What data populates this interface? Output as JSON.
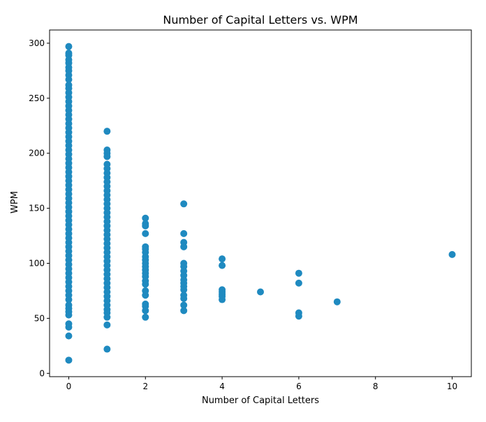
{
  "chart_data": {
    "type": "scatter",
    "title": "Number of Capital Letters vs. WPM",
    "xlabel": "Number of Capital Letters",
    "ylabel": "WPM",
    "xlim": [
      -0.5,
      10.5
    ],
    "ylim": [
      -3,
      312
    ],
    "xticks": [
      0,
      2,
      4,
      6,
      8,
      10
    ],
    "yticks": [
      0,
      50,
      100,
      150,
      200,
      250,
      300
    ],
    "grid": false,
    "marker_color": "#1f8ac0",
    "points": [
      {
        "x": 0,
        "y": 297
      },
      {
        "x": 0,
        "y": 291
      },
      {
        "x": 0,
        "y": 289
      },
      {
        "x": 0,
        "y": 285
      },
      {
        "x": 0,
        "y": 282
      },
      {
        "x": 0,
        "y": 278
      },
      {
        "x": 0,
        "y": 275
      },
      {
        "x": 0,
        "y": 271
      },
      {
        "x": 0,
        "y": 267
      },
      {
        "x": 0,
        "y": 262
      },
      {
        "x": 0,
        "y": 259
      },
      {
        "x": 0,
        "y": 255
      },
      {
        "x": 0,
        "y": 251
      },
      {
        "x": 0,
        "y": 247
      },
      {
        "x": 0,
        "y": 243
      },
      {
        "x": 0,
        "y": 239
      },
      {
        "x": 0,
        "y": 235
      },
      {
        "x": 0,
        "y": 231
      },
      {
        "x": 0,
        "y": 227
      },
      {
        "x": 0,
        "y": 223
      },
      {
        "x": 0,
        "y": 219
      },
      {
        "x": 0,
        "y": 215
      },
      {
        "x": 0,
        "y": 211
      },
      {
        "x": 0,
        "y": 207
      },
      {
        "x": 0,
        "y": 203
      },
      {
        "x": 0,
        "y": 199
      },
      {
        "x": 0,
        "y": 195
      },
      {
        "x": 0,
        "y": 191
      },
      {
        "x": 0,
        "y": 187
      },
      {
        "x": 0,
        "y": 183
      },
      {
        "x": 0,
        "y": 179
      },
      {
        "x": 0,
        "y": 175
      },
      {
        "x": 0,
        "y": 171
      },
      {
        "x": 0,
        "y": 167
      },
      {
        "x": 0,
        "y": 163
      },
      {
        "x": 0,
        "y": 159
      },
      {
        "x": 0,
        "y": 155
      },
      {
        "x": 0,
        "y": 151
      },
      {
        "x": 0,
        "y": 147
      },
      {
        "x": 0,
        "y": 143
      },
      {
        "x": 0,
        "y": 139
      },
      {
        "x": 0,
        "y": 135
      },
      {
        "x": 0,
        "y": 131
      },
      {
        "x": 0,
        "y": 127
      },
      {
        "x": 0,
        "y": 123
      },
      {
        "x": 0,
        "y": 119
      },
      {
        "x": 0,
        "y": 115
      },
      {
        "x": 0,
        "y": 111
      },
      {
        "x": 0,
        "y": 107
      },
      {
        "x": 0,
        "y": 103
      },
      {
        "x": 0,
        "y": 99
      },
      {
        "x": 0,
        "y": 95
      },
      {
        "x": 0,
        "y": 91
      },
      {
        "x": 0,
        "y": 87
      },
      {
        "x": 0,
        "y": 83
      },
      {
        "x": 0,
        "y": 79
      },
      {
        "x": 0,
        "y": 75
      },
      {
        "x": 0,
        "y": 71
      },
      {
        "x": 0,
        "y": 67
      },
      {
        "x": 0,
        "y": 62
      },
      {
        "x": 0,
        "y": 59
      },
      {
        "x": 0,
        "y": 56
      },
      {
        "x": 0,
        "y": 53
      },
      {
        "x": 0,
        "y": 45
      },
      {
        "x": 0,
        "y": 42
      },
      {
        "x": 0,
        "y": 34
      },
      {
        "x": 0,
        "y": 12
      },
      {
        "x": 1,
        "y": 220
      },
      {
        "x": 1,
        "y": 203
      },
      {
        "x": 1,
        "y": 200
      },
      {
        "x": 1,
        "y": 197
      },
      {
        "x": 1,
        "y": 190
      },
      {
        "x": 1,
        "y": 186
      },
      {
        "x": 1,
        "y": 182
      },
      {
        "x": 1,
        "y": 178
      },
      {
        "x": 1,
        "y": 174
      },
      {
        "x": 1,
        "y": 170
      },
      {
        "x": 1,
        "y": 166
      },
      {
        "x": 1,
        "y": 162
      },
      {
        "x": 1,
        "y": 158
      },
      {
        "x": 1,
        "y": 154
      },
      {
        "x": 1,
        "y": 150
      },
      {
        "x": 1,
        "y": 146
      },
      {
        "x": 1,
        "y": 142
      },
      {
        "x": 1,
        "y": 138
      },
      {
        "x": 1,
        "y": 134
      },
      {
        "x": 1,
        "y": 130
      },
      {
        "x": 1,
        "y": 126
      },
      {
        "x": 1,
        "y": 122
      },
      {
        "x": 1,
        "y": 118
      },
      {
        "x": 1,
        "y": 114
      },
      {
        "x": 1,
        "y": 110
      },
      {
        "x": 1,
        "y": 106
      },
      {
        "x": 1,
        "y": 102
      },
      {
        "x": 1,
        "y": 98
      },
      {
        "x": 1,
        "y": 94
      },
      {
        "x": 1,
        "y": 90
      },
      {
        "x": 1,
        "y": 86
      },
      {
        "x": 1,
        "y": 82
      },
      {
        "x": 1,
        "y": 78
      },
      {
        "x": 1,
        "y": 74
      },
      {
        "x": 1,
        "y": 70
      },
      {
        "x": 1,
        "y": 66
      },
      {
        "x": 1,
        "y": 62
      },
      {
        "x": 1,
        "y": 58
      },
      {
        "x": 1,
        "y": 55
      },
      {
        "x": 1,
        "y": 51
      },
      {
        "x": 1,
        "y": 44
      },
      {
        "x": 1,
        "y": 22
      },
      {
        "x": 2,
        "y": 141
      },
      {
        "x": 2,
        "y": 136
      },
      {
        "x": 2,
        "y": 134
      },
      {
        "x": 2,
        "y": 127
      },
      {
        "x": 2,
        "y": 115
      },
      {
        "x": 2,
        "y": 113
      },
      {
        "x": 2,
        "y": 110
      },
      {
        "x": 2,
        "y": 106
      },
      {
        "x": 2,
        "y": 103
      },
      {
        "x": 2,
        "y": 100
      },
      {
        "x": 2,
        "y": 97
      },
      {
        "x": 2,
        "y": 94
      },
      {
        "x": 2,
        "y": 91
      },
      {
        "x": 2,
        "y": 88
      },
      {
        "x": 2,
        "y": 84
      },
      {
        "x": 2,
        "y": 81
      },
      {
        "x": 2,
        "y": 75
      },
      {
        "x": 2,
        "y": 71
      },
      {
        "x": 2,
        "y": 63
      },
      {
        "x": 2,
        "y": 61
      },
      {
        "x": 2,
        "y": 57
      },
      {
        "x": 2,
        "y": 51
      },
      {
        "x": 3,
        "y": 154
      },
      {
        "x": 3,
        "y": 127
      },
      {
        "x": 3,
        "y": 119
      },
      {
        "x": 3,
        "y": 115
      },
      {
        "x": 3,
        "y": 100
      },
      {
        "x": 3,
        "y": 97
      },
      {
        "x": 3,
        "y": 93
      },
      {
        "x": 3,
        "y": 89
      },
      {
        "x": 3,
        "y": 85
      },
      {
        "x": 3,
        "y": 82
      },
      {
        "x": 3,
        "y": 79
      },
      {
        "x": 3,
        "y": 76
      },
      {
        "x": 3,
        "y": 71
      },
      {
        "x": 3,
        "y": 68
      },
      {
        "x": 3,
        "y": 62
      },
      {
        "x": 3,
        "y": 57
      },
      {
        "x": 4,
        "y": 104
      },
      {
        "x": 4,
        "y": 98
      },
      {
        "x": 4,
        "y": 76
      },
      {
        "x": 4,
        "y": 74
      },
      {
        "x": 4,
        "y": 72
      },
      {
        "x": 4,
        "y": 70
      },
      {
        "x": 4,
        "y": 67
      },
      {
        "x": 5,
        "y": 74
      },
      {
        "x": 6,
        "y": 91
      },
      {
        "x": 6,
        "y": 82
      },
      {
        "x": 6,
        "y": 55
      },
      {
        "x": 6,
        "y": 52
      },
      {
        "x": 7,
        "y": 65
      },
      {
        "x": 10,
        "y": 108
      }
    ]
  }
}
